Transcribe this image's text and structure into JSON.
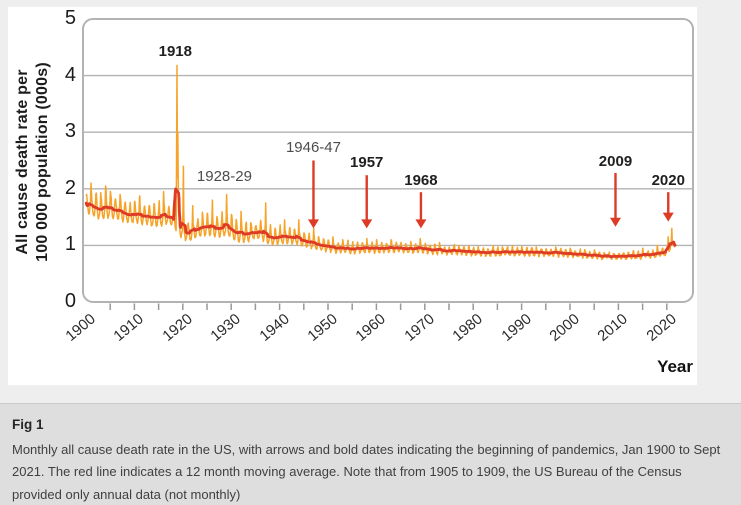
{
  "figure": {
    "y_axis": {
      "title_line1": "All cause death rate per",
      "title_line2": "100 000 population (000s)",
      "ticks": [
        0,
        1,
        2,
        3,
        4,
        5
      ]
    },
    "x_axis": {
      "title": "Year",
      "decade_labels": [
        1900,
        1910,
        1920,
        1930,
        1940,
        1950,
        1960,
        1970,
        1980,
        1990,
        2000,
        2010,
        2020
      ],
      "minor_tick_step_years": 5
    }
  },
  "chart_data": {
    "type": "line",
    "title": "",
    "xlabel": "Year",
    "ylabel": "All cause death rate per 100 000 population (000s)",
    "x_range": [
      1900,
      2021.75
    ],
    "ylim": [
      0,
      5
    ],
    "grid": "horizontal",
    "legend": "none",
    "series": [
      {
        "name": "Monthly all cause death rate",
        "color": "#F7A329",
        "style": "monthly jagged line"
      },
      {
        "name": "12 month moving average",
        "color": "#DE3B27",
        "style": "smooth bold line"
      }
    ],
    "moving_average_control_points": [
      [
        1900,
        1.74
      ],
      [
        1901.5,
        1.65
      ],
      [
        1903,
        1.6
      ],
      [
        1905,
        1.63
      ],
      [
        1907,
        1.58
      ],
      [
        1909,
        1.53
      ],
      [
        1911,
        1.52
      ],
      [
        1913,
        1.49
      ],
      [
        1915,
        1.46
      ],
      [
        1916.5,
        1.5
      ],
      [
        1918,
        1.46
      ],
      [
        1919.5,
        1.28
      ],
      [
        1921,
        1.18
      ],
      [
        1922.5,
        1.26
      ],
      [
        1925,
        1.3
      ],
      [
        1927,
        1.27
      ],
      [
        1929,
        1.3
      ],
      [
        1931,
        1.2
      ],
      [
        1933,
        1.17
      ],
      [
        1935,
        1.23
      ],
      [
        1936.5,
        1.2
      ],
      [
        1938,
        1.12
      ],
      [
        1940,
        1.12
      ],
      [
        1942,
        1.14
      ],
      [
        1944,
        1.1
      ],
      [
        1946,
        1.05
      ],
      [
        1948,
        1.0
      ],
      [
        1950,
        0.97
      ],
      [
        1952,
        0.94
      ],
      [
        1955,
        0.93
      ],
      [
        1958,
        0.95
      ],
      [
        1961,
        0.94
      ],
      [
        1964,
        0.95
      ],
      [
        1967,
        0.94
      ],
      [
        1970,
        0.93
      ],
      [
        1974,
        0.9
      ],
      [
        1978,
        0.89
      ],
      [
        1982,
        0.87
      ],
      [
        1986,
        0.87
      ],
      [
        1990,
        0.88
      ],
      [
        1994,
        0.87
      ],
      [
        1998,
        0.86
      ],
      [
        2002,
        0.84
      ],
      [
        2006,
        0.81
      ],
      [
        2010,
        0.8
      ],
      [
        2013,
        0.81
      ],
      [
        2016,
        0.83
      ],
      [
        2019,
        0.85
      ],
      [
        2020.2,
        0.9
      ],
      [
        2020.8,
        1.0
      ],
      [
        2021.75,
        1.04
      ]
    ],
    "seasonal_amplitude_control_points": [
      [
        1900,
        0.14
      ],
      [
        1910,
        0.125
      ],
      [
        1920,
        0.115
      ],
      [
        1930,
        0.115
      ],
      [
        1938,
        0.1
      ],
      [
        1945,
        0.085
      ],
      [
        1952,
        0.07
      ],
      [
        1960,
        0.062
      ],
      [
        1970,
        0.055
      ],
      [
        1980,
        0.05
      ],
      [
        1990,
        0.05
      ],
      [
        2000,
        0.045
      ],
      [
        2010,
        0.04
      ],
      [
        2021,
        0.045
      ]
    ],
    "winter_spike_amplitude_control_points": [
      [
        1900,
        0.3
      ],
      [
        1916,
        0.32
      ],
      [
        1922,
        0.3
      ],
      [
        1932,
        0.27
      ],
      [
        1940,
        0.2
      ],
      [
        1948,
        0.14
      ],
      [
        1956,
        0.11
      ],
      [
        1965,
        0.1
      ],
      [
        1975,
        0.085
      ],
      [
        1990,
        0.075
      ],
      [
        2005,
        0.065
      ],
      [
        2021,
        0.07
      ]
    ],
    "notable_spikes": [
      [
        1901.0,
        2.1
      ],
      [
        1904.0,
        2.05
      ],
      [
        1907.05,
        1.9
      ],
      [
        1916.05,
        1.95
      ],
      [
        1918.75,
        2.6
      ],
      [
        1918.83,
        4.18
      ],
      [
        1918.92,
        3.0
      ],
      [
        1919.05,
        2.2
      ],
      [
        1920.12,
        2.4
      ],
      [
        1922.05,
        1.7
      ],
      [
        1926.1,
        1.8
      ],
      [
        1929.05,
        1.9
      ],
      [
        1932.0,
        1.6
      ],
      [
        1937.1,
        1.75
      ],
      [
        1941.05,
        1.45
      ],
      [
        1943.95,
        1.45
      ],
      [
        1947.0,
        1.3
      ],
      [
        1951.05,
        1.15
      ],
      [
        1953.05,
        1.1
      ],
      [
        1958.0,
        1.12
      ],
      [
        1960.05,
        1.1
      ],
      [
        1963.05,
        1.1
      ],
      [
        1969.0,
        1.12
      ],
      [
        1973.0,
        1.05
      ],
      [
        1976.05,
        1.0
      ],
      [
        1981.0,
        0.98
      ],
      [
        1986.05,
        0.97
      ],
      [
        1990.05,
        0.98
      ],
      [
        1997.0,
        0.97
      ],
      [
        2000.05,
        0.95
      ],
      [
        2005.0,
        0.92
      ],
      [
        2015.05,
        0.95
      ],
      [
        2018.05,
        1.0
      ],
      [
        2020.3,
        1.15
      ],
      [
        2021.05,
        1.3
      ]
    ],
    "annotations": [
      {
        "label": "1918",
        "year": 1918.45,
        "style": "bold",
        "label_value": 4.42,
        "arrow": null
      },
      {
        "label": "1928-29",
        "year": 1928.6,
        "style": "gray",
        "label_value": 2.2,
        "arrow": null
      },
      {
        "label": "1946-47",
        "year": 1947.0,
        "style": "gray",
        "label_value": 2.72,
        "arrow": {
          "from": 2.5,
          "to": 1.3
        }
      },
      {
        "label": "1957",
        "year": 1958.0,
        "style": "bold",
        "label_value": 2.45,
        "arrow": {
          "from": 2.24,
          "to": 1.3
        }
      },
      {
        "label": "1968",
        "year": 1969.2,
        "style": "bold",
        "label_value": 2.13,
        "arrow": {
          "from": 1.94,
          "to": 1.3
        }
      },
      {
        "label": "2009",
        "year": 2009.4,
        "style": "bold",
        "label_value": 2.47,
        "arrow": {
          "from": 2.28,
          "to": 1.33
        }
      },
      {
        "label": "2020",
        "year": 2020.3,
        "style": "bold",
        "label_value": 2.13,
        "arrow": {
          "from": 1.94,
          "to": 1.42
        }
      }
    ],
    "colors": {
      "monthly_line": "#F7A329",
      "moving_average_line": "#DE3B27",
      "arrow": "#DE3B27",
      "grid": "#b3b3b3",
      "plot_border": "#b3b3b3",
      "axis_tick": "#999999"
    }
  },
  "caption": {
    "label": "Fig 1",
    "text": "Monthly all cause death rate in the US, with arrows and bold dates indicating the beginning of pandemics, Jan 1900 to Sept 2021. The red line indicates a 12 month moving average. Note that from 1905 to 1909, the US Bureau of the Census provided only annual data (not monthly)"
  }
}
